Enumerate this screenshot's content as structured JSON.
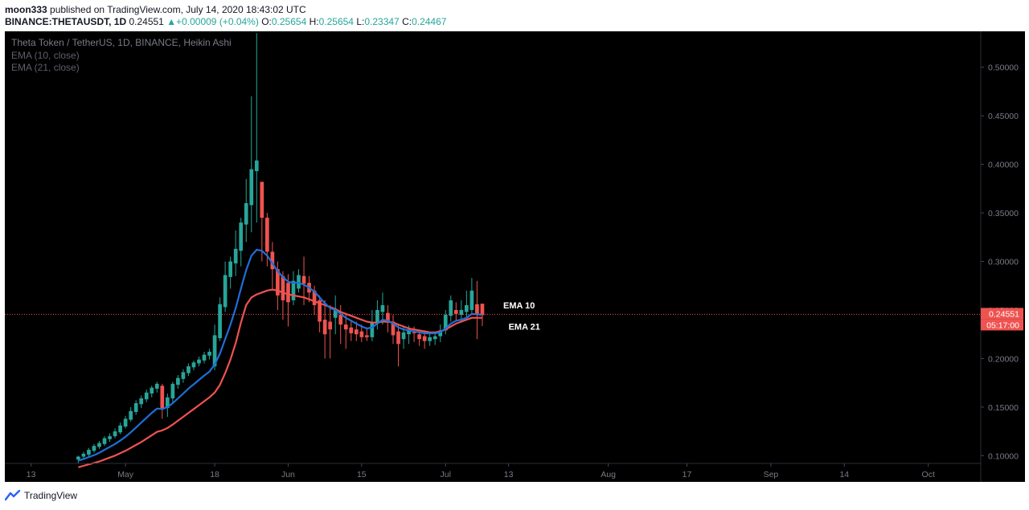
{
  "header": {
    "author": "moon333",
    "published_text": "published on TradingView.com, July 14, 2020 18:43:02 UTC",
    "symbol": "BINANCE:THETAUSDT, 1D",
    "price": "0.24551",
    "change": "+0.00009 (+0.04%)",
    "o_label": "O:",
    "o_value": "0.25654",
    "h_label": "H:",
    "h_value": "0.25654",
    "l_label": "L:",
    "l_value": "0.23347",
    "c_label": "C:",
    "c_value": "0.24467"
  },
  "chart_legend": {
    "title": "Theta Token / TetherUS, 1D, BINANCE, Heikin Ashi",
    "ema10": "EMA (10, close)",
    "ema21": "EMA (21, close)"
  },
  "footer": {
    "brand": "TradingView"
  },
  "colors": {
    "up": "#26a69a",
    "down": "#ef5350",
    "ema10": "#1e6fd9",
    "ema21": "#ef5350",
    "bg": "#000000",
    "axis_text": "#787b86"
  },
  "chart_data": {
    "type": "candlestick",
    "style": "Heikin Ashi",
    "title": "Theta Token / TetherUS, 1D, BINANCE, Heikin Ashi",
    "y_ticks": [
      "0.50000",
      "0.45000",
      "0.40000",
      "0.35000",
      "0.30000",
      "0.25000",
      "0.20000",
      "0.15000",
      "0.10000"
    ],
    "y_tick_values": [
      0.5,
      0.45,
      0.4,
      0.35,
      0.3,
      0.25,
      0.2,
      0.15,
      0.1
    ],
    "ylim": [
      0.092,
      0.537
    ],
    "x_ticks": [
      {
        "label": "13",
        "day": 0
      },
      {
        "label": "May",
        "day": 18
      },
      {
        "label": "18",
        "day": 35
      },
      {
        "label": "Jun",
        "day": 49
      },
      {
        "label": "15",
        "day": 63
      },
      {
        "label": "Jul",
        "day": 79
      },
      {
        "label": "13",
        "day": 91
      },
      {
        "label": "Aug",
        "day": 110
      },
      {
        "label": "17",
        "day": 125
      },
      {
        "label": "Sep",
        "day": 141
      },
      {
        "label": "14",
        "day": 155
      },
      {
        "label": "Oct",
        "day": 171
      }
    ],
    "xlim": [
      -5,
      181
    ],
    "grid": false,
    "last_price": "0.24551",
    "last_price_value": 0.24551,
    "countdown": "05:17:00",
    "annotations": [
      {
        "text": "EMA 10",
        "day": 90,
        "y": 0.255
      },
      {
        "text": "EMA 21",
        "day": 91,
        "y": 0.233
      }
    ],
    "candles_start_day": 9,
    "candles": [
      {
        "o": 0.096,
        "h": 0.1,
        "l": 0.092,
        "c": 0.099
      },
      {
        "o": 0.099,
        "h": 0.104,
        "l": 0.096,
        "c": 0.102
      },
      {
        "o": 0.101,
        "h": 0.108,
        "l": 0.099,
        "c": 0.106
      },
      {
        "o": 0.105,
        "h": 0.112,
        "l": 0.103,
        "c": 0.11
      },
      {
        "o": 0.109,
        "h": 0.115,
        "l": 0.107,
        "c": 0.113
      },
      {
        "o": 0.112,
        "h": 0.12,
        "l": 0.11,
        "c": 0.118
      },
      {
        "o": 0.117,
        "h": 0.123,
        "l": 0.114,
        "c": 0.12
      },
      {
        "o": 0.12,
        "h": 0.128,
        "l": 0.118,
        "c": 0.125
      },
      {
        "o": 0.124,
        "h": 0.134,
        "l": 0.122,
        "c": 0.131
      },
      {
        "o": 0.13,
        "h": 0.141,
        "l": 0.128,
        "c": 0.138
      },
      {
        "o": 0.137,
        "h": 0.15,
        "l": 0.135,
        "c": 0.146
      },
      {
        "o": 0.145,
        "h": 0.157,
        "l": 0.142,
        "c": 0.154
      },
      {
        "o": 0.153,
        "h": 0.162,
        "l": 0.149,
        "c": 0.159
      },
      {
        "o": 0.158,
        "h": 0.168,
        "l": 0.155,
        "c": 0.165
      },
      {
        "o": 0.164,
        "h": 0.172,
        "l": 0.16,
        "c": 0.17
      },
      {
        "o": 0.169,
        "h": 0.176,
        "l": 0.165,
        "c": 0.174
      },
      {
        "o": 0.172,
        "h": 0.174,
        "l": 0.138,
        "c": 0.148
      },
      {
        "o": 0.149,
        "h": 0.164,
        "l": 0.14,
        "c": 0.16
      },
      {
        "o": 0.159,
        "h": 0.176,
        "l": 0.155,
        "c": 0.174
      },
      {
        "o": 0.173,
        "h": 0.183,
        "l": 0.169,
        "c": 0.18
      },
      {
        "o": 0.179,
        "h": 0.189,
        "l": 0.175,
        "c": 0.186
      },
      {
        "o": 0.185,
        "h": 0.195,
        "l": 0.182,
        "c": 0.192
      },
      {
        "o": 0.191,
        "h": 0.198,
        "l": 0.188,
        "c": 0.196
      },
      {
        "o": 0.195,
        "h": 0.202,
        "l": 0.192,
        "c": 0.199
      },
      {
        "o": 0.198,
        "h": 0.207,
        "l": 0.195,
        "c": 0.204
      },
      {
        "o": 0.203,
        "h": 0.21,
        "l": 0.199,
        "c": 0.207
      },
      {
        "o": 0.192,
        "h": 0.235,
        "l": 0.188,
        "c": 0.224
      },
      {
        "o": 0.221,
        "h": 0.263,
        "l": 0.218,
        "c": 0.256
      },
      {
        "o": 0.253,
        "h": 0.3,
        "l": 0.248,
        "c": 0.286
      },
      {
        "o": 0.284,
        "h": 0.305,
        "l": 0.272,
        "c": 0.3
      },
      {
        "o": 0.298,
        "h": 0.332,
        "l": 0.285,
        "c": 0.313
      },
      {
        "o": 0.311,
        "h": 0.345,
        "l": 0.295,
        "c": 0.34
      },
      {
        "o": 0.338,
        "h": 0.385,
        "l": 0.32,
        "c": 0.36
      },
      {
        "o": 0.358,
        "h": 0.47,
        "l": 0.33,
        "c": 0.395
      },
      {
        "o": 0.393,
        "h": 0.535,
        "l": 0.34,
        "c": 0.404
      },
      {
        "o": 0.382,
        "h": 0.382,
        "l": 0.3,
        "c": 0.345
      },
      {
        "o": 0.345,
        "h": 0.35,
        "l": 0.295,
        "c": 0.31
      },
      {
        "o": 0.31,
        "h": 0.32,
        "l": 0.27,
        "c": 0.292
      },
      {
        "o": 0.292,
        "h": 0.3,
        "l": 0.25,
        "c": 0.265
      },
      {
        "o": 0.285,
        "h": 0.29,
        "l": 0.24,
        "c": 0.26
      },
      {
        "o": 0.278,
        "h": 0.287,
        "l": 0.233,
        "c": 0.258
      },
      {
        "o": 0.26,
        "h": 0.29,
        "l": 0.255,
        "c": 0.28
      },
      {
        "o": 0.272,
        "h": 0.292,
        "l": 0.268,
        "c": 0.286
      },
      {
        "o": 0.285,
        "h": 0.305,
        "l": 0.255,
        "c": 0.277
      },
      {
        "o": 0.278,
        "h": 0.285,
        "l": 0.258,
        "c": 0.268
      },
      {
        "o": 0.27,
        "h": 0.275,
        "l": 0.245,
        "c": 0.255
      },
      {
        "o": 0.26,
        "h": 0.265,
        "l": 0.227,
        "c": 0.238
      },
      {
        "o": 0.24,
        "h": 0.26,
        "l": 0.2,
        "c": 0.225
      },
      {
        "o": 0.238,
        "h": 0.255,
        "l": 0.2,
        "c": 0.23
      },
      {
        "o": 0.242,
        "h": 0.265,
        "l": 0.225,
        "c": 0.25
      },
      {
        "o": 0.245,
        "h": 0.255,
        "l": 0.215,
        "c": 0.235
      },
      {
        "o": 0.235,
        "h": 0.245,
        "l": 0.21,
        "c": 0.23
      },
      {
        "o": 0.232,
        "h": 0.24,
        "l": 0.218,
        "c": 0.226
      },
      {
        "o": 0.23,
        "h": 0.238,
        "l": 0.218,
        "c": 0.225
      },
      {
        "o": 0.228,
        "h": 0.235,
        "l": 0.217,
        "c": 0.222
      },
      {
        "o": 0.224,
        "h": 0.232,
        "l": 0.218,
        "c": 0.222
      },
      {
        "o": 0.222,
        "h": 0.25,
        "l": 0.218,
        "c": 0.238
      },
      {
        "o": 0.236,
        "h": 0.26,
        "l": 0.23,
        "c": 0.25
      },
      {
        "o": 0.248,
        "h": 0.268,
        "l": 0.235,
        "c": 0.255
      },
      {
        "o": 0.247,
        "h": 0.255,
        "l": 0.227,
        "c": 0.237
      },
      {
        "o": 0.238,
        "h": 0.245,
        "l": 0.215,
        "c": 0.224
      },
      {
        "o": 0.228,
        "h": 0.235,
        "l": 0.192,
        "c": 0.215
      },
      {
        "o": 0.22,
        "h": 0.233,
        "l": 0.21,
        "c": 0.227
      },
      {
        "o": 0.225,
        "h": 0.234,
        "l": 0.215,
        "c": 0.23
      },
      {
        "o": 0.227,
        "h": 0.233,
        "l": 0.217,
        "c": 0.226
      },
      {
        "o": 0.225,
        "h": 0.23,
        "l": 0.213,
        "c": 0.22
      },
      {
        "o": 0.223,
        "h": 0.229,
        "l": 0.21,
        "c": 0.218
      },
      {
        "o": 0.218,
        "h": 0.227,
        "l": 0.213,
        "c": 0.222
      },
      {
        "o": 0.22,
        "h": 0.228,
        "l": 0.214,
        "c": 0.223
      },
      {
        "o": 0.223,
        "h": 0.235,
        "l": 0.217,
        "c": 0.229
      },
      {
        "o": 0.229,
        "h": 0.25,
        "l": 0.225,
        "c": 0.245
      },
      {
        "o": 0.244,
        "h": 0.265,
        "l": 0.238,
        "c": 0.26
      },
      {
        "o": 0.25,
        "h": 0.258,
        "l": 0.238,
        "c": 0.246
      },
      {
        "o": 0.245,
        "h": 0.26,
        "l": 0.237,
        "c": 0.25
      },
      {
        "o": 0.248,
        "h": 0.27,
        "l": 0.242,
        "c": 0.255
      },
      {
        "o": 0.25,
        "h": 0.283,
        "l": 0.245,
        "c": 0.27
      },
      {
        "o": 0.256,
        "h": 0.28,
        "l": 0.22,
        "c": 0.245
      },
      {
        "o": 0.2565,
        "h": 0.2565,
        "l": 0.2335,
        "c": 0.2447
      }
    ],
    "ema10": [
      0.095,
      0.0965,
      0.0985,
      0.1005,
      0.103,
      0.106,
      0.109,
      0.112,
      0.1155,
      0.1195,
      0.124,
      0.129,
      0.134,
      0.139,
      0.144,
      0.1485,
      0.148,
      0.15,
      0.154,
      0.159,
      0.164,
      0.169,
      0.1735,
      0.178,
      0.1825,
      0.1865,
      0.194,
      0.205,
      0.22,
      0.235,
      0.252,
      0.272,
      0.291,
      0.306,
      0.312,
      0.311,
      0.306,
      0.298,
      0.29,
      0.284,
      0.279,
      0.278,
      0.278,
      0.276,
      0.273,
      0.269,
      0.263,
      0.257,
      0.252,
      0.25,
      0.246,
      0.242,
      0.239,
      0.236,
      0.233,
      0.231,
      0.232,
      0.236,
      0.24,
      0.239,
      0.236,
      0.232,
      0.23,
      0.229,
      0.228,
      0.227,
      0.226,
      0.226,
      0.226,
      0.227,
      0.231,
      0.236,
      0.239,
      0.24,
      0.242,
      0.246,
      0.2455,
      0.245
    ],
    "ema21": [
      0.088,
      0.0895,
      0.091,
      0.0925,
      0.094,
      0.096,
      0.098,
      0.1,
      0.1025,
      0.105,
      0.108,
      0.111,
      0.114,
      0.1175,
      0.121,
      0.1245,
      0.126,
      0.1285,
      0.132,
      0.136,
      0.14,
      0.144,
      0.148,
      0.152,
      0.156,
      0.16,
      0.165,
      0.173,
      0.185,
      0.199,
      0.216,
      0.237,
      0.255,
      0.263,
      0.266,
      0.268,
      0.27,
      0.271,
      0.27,
      0.268,
      0.266,
      0.265,
      0.264,
      0.263,
      0.261,
      0.259,
      0.257,
      0.255,
      0.253,
      0.251,
      0.248,
      0.246,
      0.244,
      0.242,
      0.24,
      0.238,
      0.237,
      0.237,
      0.238,
      0.238,
      0.237,
      0.235,
      0.233,
      0.231,
      0.23,
      0.229,
      0.228,
      0.227,
      0.227,
      0.228,
      0.23,
      0.233,
      0.236,
      0.238,
      0.24,
      0.242,
      0.242,
      0.242
    ]
  }
}
